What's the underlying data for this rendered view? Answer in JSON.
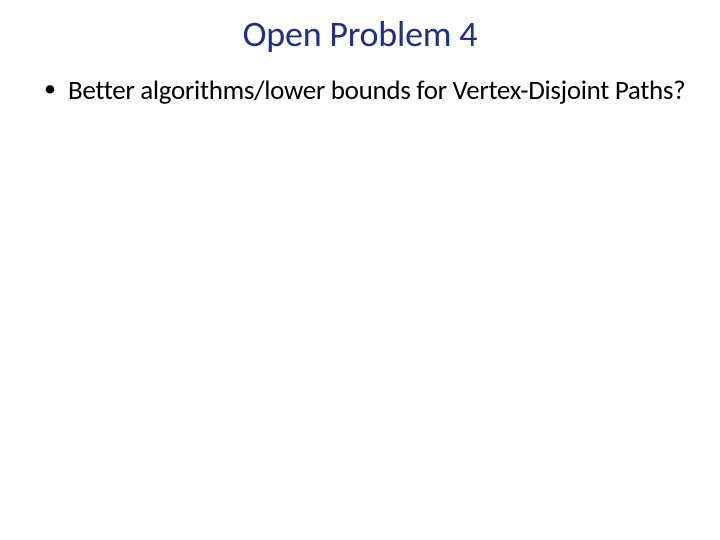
{
  "slide": {
    "title": "Open Problem 4",
    "title_color": "#1f2e8f",
    "title_fontsize": 36,
    "background_color": "#ffffff",
    "bullets": [
      {
        "text": "Better algorithms/lower bounds for Vertex-Disjoint Paths?"
      }
    ],
    "body_fontsize": 27,
    "body_color": "#000000"
  }
}
